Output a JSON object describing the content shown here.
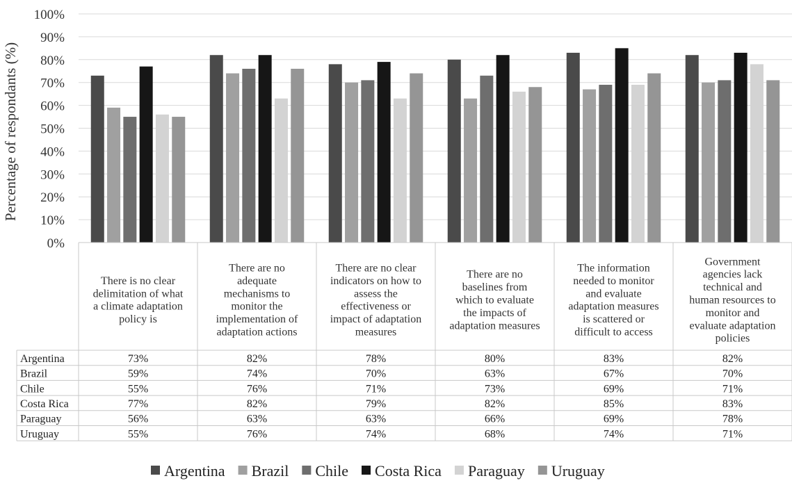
{
  "chart_data": {
    "type": "bar",
    "title": "",
    "xlabel": "",
    "ylabel": "Percentage of respondants (%)",
    "ylim": [
      0,
      100
    ],
    "yticks": [
      "0%",
      "10%",
      "20%",
      "30%",
      "40%",
      "50%",
      "60%",
      "70%",
      "80%",
      "90%",
      "100%"
    ],
    "grid": true,
    "legend_position": "bottom",
    "categories": [
      "There is no clear delimitation of what a climate adaptation policy is",
      "There are no adequate mechanisms to monitor the implementation of adaptation actions",
      "There are no clear indicators on how to assess the effectiveness or impact of adaptation measures",
      "There are no baselines from which to evaluate the impacts of adaptation measures",
      "The information needed to monitor and evaluate adaptation measures is scattered or difficult to access",
      "Government agencies lack technical and human resources to monitor and evaluate adaptation policies"
    ],
    "category_lines": [
      [
        "There is no clear",
        "delimitation of what",
        "a climate adaptation",
        "policy is"
      ],
      [
        "There are no",
        "adequate",
        "mechanisms to",
        "monitor the",
        "implementation of",
        "adaptation actions"
      ],
      [
        "There are no clear",
        "indicators on how to",
        "assess the",
        "effectiveness or",
        "impact of adaptation",
        "measures"
      ],
      [
        "There are no",
        "baselines from",
        "which to evaluate",
        "the impacts of",
        "adaptation measures"
      ],
      [
        "The information",
        "needed to monitor",
        "and evaluate",
        "adaptation measures",
        "is scattered or",
        "difficult to access"
      ],
      [
        "Government",
        "agencies lack",
        "technical and",
        "human resources to",
        "monitor and",
        "evaluate adaptation",
        "policies"
      ]
    ],
    "series": [
      {
        "name": "Argentina",
        "color": "#4a4a4a",
        "values": [
          73,
          82,
          78,
          80,
          83,
          82
        ],
        "labels": [
          "73%",
          "82%",
          "78%",
          "80%",
          "83%",
          "82%"
        ]
      },
      {
        "name": "Brazil",
        "color": "#a0a0a0",
        "values": [
          59,
          74,
          70,
          63,
          67,
          70
        ],
        "labels": [
          "59%",
          "74%",
          "70%",
          "63%",
          "67%",
          "70%"
        ]
      },
      {
        "name": "Chile",
        "color": "#6e6e6e",
        "values": [
          55,
          76,
          71,
          73,
          69,
          71
        ],
        "labels": [
          "55%",
          "76%",
          "71%",
          "73%",
          "69%",
          "71%"
        ]
      },
      {
        "name": "Costa Rica",
        "color": "#161616",
        "values": [
          77,
          82,
          79,
          82,
          85,
          83
        ],
        "labels": [
          "77%",
          "82%",
          "79%",
          "82%",
          "85%",
          "83%"
        ]
      },
      {
        "name": "Paraguay",
        "color": "#d3d3d3",
        "values": [
          56,
          63,
          63,
          66,
          69,
          78
        ],
        "labels": [
          "56%",
          "63%",
          "63%",
          "66%",
          "69%",
          "78%"
        ]
      },
      {
        "name": "Uruguay",
        "color": "#959595",
        "values": [
          55,
          76,
          74,
          68,
          74,
          71
        ],
        "labels": [
          "55%",
          "76%",
          "74%",
          "68%",
          "74%",
          "71%"
        ]
      }
    ]
  }
}
